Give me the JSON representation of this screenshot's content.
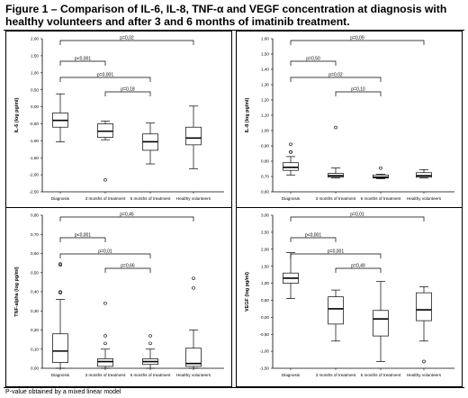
{
  "figure": {
    "title": "Figure 1 – Comparison of IL-6, IL-8, TNF-α and VEGF concentration at diagnosis with healthy volunteers and after 3 and 6 months of imatinib treatment.",
    "footnote": "P-value obtained by a mixed linear model"
  },
  "chart_data": [
    {
      "type": "boxplot",
      "ylabel": "IL-6 (log pg/ml)",
      "ylim": [
        -2.5,
        2.0
      ],
      "yticks": [
        "2,00",
        "1,50",
        "1,00",
        "0,50",
        "0,00",
        "-0,50",
        "-1,00",
        "-1,50",
        "-2,00",
        "-2,50"
      ],
      "yticks_values": [
        2.0,
        1.5,
        1.0,
        0.5,
        0.0,
        -0.5,
        -1.0,
        -1.5,
        -2.0,
        -2.5
      ],
      "categories": [
        "Diagnosis",
        "3 months of treatment",
        "6 months of treatment",
        "Healthy volunteers"
      ],
      "boxes": [
        {
          "whislo": -1.03,
          "q1": -0.6,
          "med": -0.4,
          "q3": -0.18,
          "whishi": 0.38,
          "fliers": []
        },
        {
          "whislo": -0.97,
          "q1": -0.9,
          "med": -0.72,
          "q3": -0.5,
          "whishi": -0.42,
          "fliers": [
            -2.15
          ]
        },
        {
          "whislo": -1.68,
          "q1": -1.28,
          "med": -1.03,
          "q3": -0.8,
          "whishi": -0.48,
          "fliers": []
        },
        {
          "whislo": -1.82,
          "q1": -1.12,
          "med": -0.92,
          "q3": -0.6,
          "whishi": 0.02,
          "fliers": []
        }
      ],
      "brackets": [
        {
          "from": 0,
          "to": 3,
          "label": "p=0,02"
        },
        {
          "from": 0,
          "to": 1,
          "label": "p<0,001"
        },
        {
          "from": 0,
          "to": 2,
          "label": "p=0,001"
        },
        {
          "from": 1,
          "to": 2,
          "label": "p=0,18"
        }
      ]
    },
    {
      "type": "boxplot",
      "ylabel": "IL-8 (log pg/ml)",
      "ylim": [
        0.6,
        1.6
      ],
      "yticks": [
        "1,60",
        "1,50",
        "1,40",
        "1,30",
        "1,20",
        "1,10",
        "1,00",
        "0,90",
        "0,80",
        "0,70",
        "0,60"
      ],
      "yticks_values": [
        1.6,
        1.5,
        1.4,
        1.3,
        1.2,
        1.1,
        1.0,
        0.9,
        0.8,
        0.7,
        0.6
      ],
      "categories": [
        "Diagnosis",
        "3 months of treatment",
        "6 months of treatment",
        "Healthy volunteers"
      ],
      "boxes": [
        {
          "whislo": 0.71,
          "q1": 0.74,
          "med": 0.76,
          "q3": 0.79,
          "whishi": 0.83,
          "fliers": [
            0.86,
            0.86,
            0.91
          ]
        },
        {
          "whislo": 0.69,
          "q1": 0.695,
          "med": 0.705,
          "q3": 0.72,
          "whishi": 0.755,
          "fliers": [
            1.02
          ]
        },
        {
          "whislo": 0.685,
          "q1": 0.69,
          "med": 0.695,
          "q3": 0.71,
          "whishi": 0.715,
          "fliers": [
            0.755
          ]
        },
        {
          "whislo": 0.69,
          "q1": 0.695,
          "med": 0.705,
          "q3": 0.725,
          "whishi": 0.745,
          "fliers": []
        }
      ],
      "brackets": [
        {
          "from": 0,
          "to": 3,
          "label": "p=0,09"
        },
        {
          "from": 0,
          "to": 1,
          "label": "p=0,50"
        },
        {
          "from": 0,
          "to": 2,
          "label": "p=0,02"
        },
        {
          "from": 1,
          "to": 2,
          "label": "p=0,10"
        }
      ]
    },
    {
      "type": "boxplot",
      "ylabel": "TNF-alpha (log pg/ml)",
      "ylim": [
        0.0,
        0.8
      ],
      "yticks": [
        "0,80",
        "0,70",
        "0,60",
        "0,50",
        "0,40",
        "0,30",
        "0,20",
        "0,10",
        "0,00"
      ],
      "yticks_values": [
        0.8,
        0.7,
        0.6,
        0.5,
        0.4,
        0.3,
        0.2,
        0.1,
        0.0
      ],
      "categories": [
        "Diagnosis",
        "3 months of treatment",
        "6 months of treatment",
        "Healthy volunteers"
      ],
      "boxes": [
        {
          "whislo": 0.0,
          "q1": 0.03,
          "med": 0.09,
          "q3": 0.18,
          "whishi": 0.36,
          "fliers": [
            0.395,
            0.4,
            0.54,
            0.545
          ]
        },
        {
          "whislo": 0.0,
          "q1": 0.01,
          "med": 0.035,
          "q3": 0.05,
          "whishi": 0.1,
          "fliers": [
            0.13,
            0.17,
            0.34
          ]
        },
        {
          "whislo": 0.0,
          "q1": 0.02,
          "med": 0.035,
          "q3": 0.05,
          "whishi": 0.1,
          "fliers": [
            0.13,
            0.17
          ]
        },
        {
          "whislo": 0.0,
          "q1": 0.01,
          "med": 0.025,
          "q3": 0.105,
          "whishi": 0.2,
          "fliers": [
            0.42,
            0.47
          ]
        }
      ],
      "brackets": [
        {
          "from": 0,
          "to": 3,
          "label": "p=0,45"
        },
        {
          "from": 0,
          "to": 1,
          "label": "p<0,001"
        },
        {
          "from": 0,
          "to": 2,
          "label": "p=0,01"
        },
        {
          "from": 1,
          "to": 2,
          "label": "p=0,66"
        }
      ]
    },
    {
      "type": "boxplot",
      "ylabel": "VEGF (log pg/ml)",
      "ylim": [
        -1.5,
        3.0
      ],
      "yticks": [
        "3,00",
        "2,50",
        "2,00",
        "1,50",
        "1,00",
        "0,50",
        "0,00",
        "-0,50",
        "-1,00",
        "-1,50"
      ],
      "yticks_values": [
        3.0,
        2.5,
        2.0,
        1.5,
        1.0,
        0.5,
        0.0,
        -0.5,
        -1.0,
        -1.5
      ],
      "categories": [
        "Diagnosis",
        "3 months of treatment",
        "6 months of treatment",
        "Healthy volunteers"
      ],
      "boxes": [
        {
          "whislo": 0.55,
          "q1": 1.0,
          "med": 1.15,
          "q3": 1.3,
          "whishi": 1.9,
          "fliers": []
        },
        {
          "whislo": -0.7,
          "q1": -0.2,
          "med": 0.25,
          "q3": 0.6,
          "whishi": 0.8,
          "fliers": []
        },
        {
          "whislo": -1.3,
          "q1": -0.55,
          "med": -0.05,
          "q3": 0.2,
          "whishi": 1.05,
          "fliers": []
        },
        {
          "whislo": -0.7,
          "q1": -0.1,
          "med": 0.22,
          "q3": 0.72,
          "whishi": 0.9,
          "fliers": [
            -1.3
          ]
        }
      ],
      "brackets": [
        {
          "from": 0,
          "to": 3,
          "label": "p=0,01"
        },
        {
          "from": 0,
          "to": 1,
          "label": "p<0,001"
        },
        {
          "from": 0,
          "to": 2,
          "label": "p=0,001"
        },
        {
          "from": 1,
          "to": 2,
          "label": "p=0,49"
        }
      ]
    }
  ]
}
